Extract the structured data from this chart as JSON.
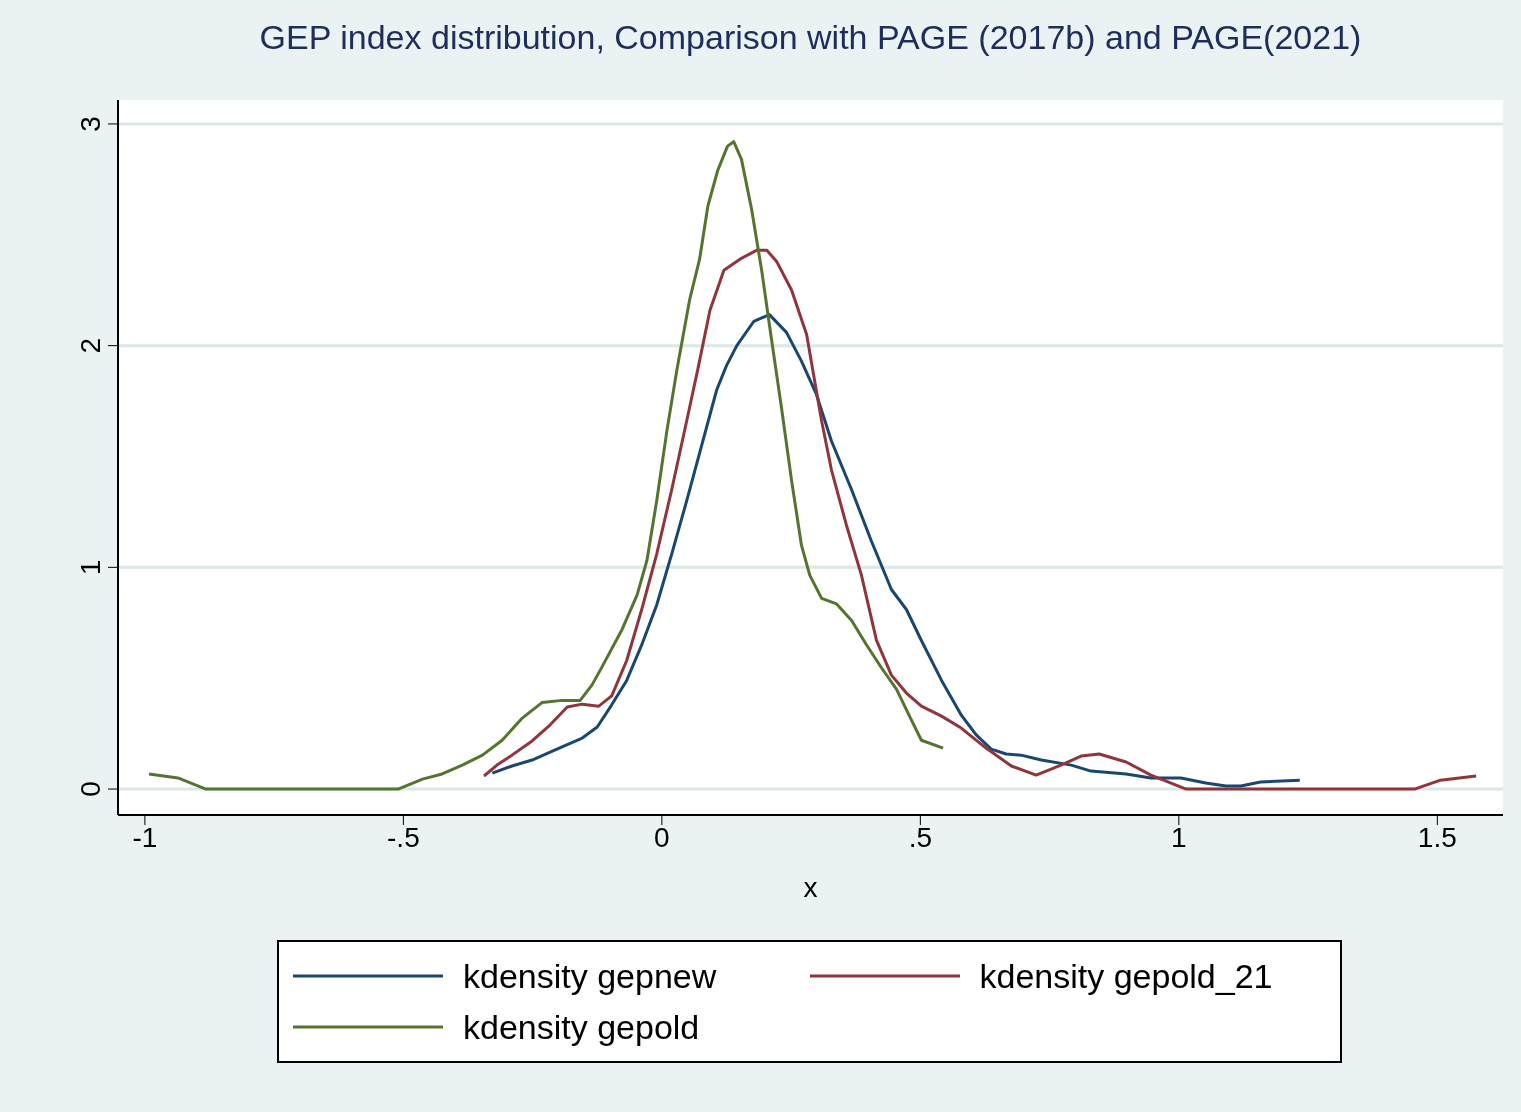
{
  "chart_data": {
    "type": "line",
    "title": "GEP index distribution, Comparison with PAGE (2017b) and PAGE(2021)",
    "xlabel": "x",
    "xlim": [
      -1.052,
      1.627
    ],
    "xticks": [
      {
        "value": -1,
        "label": "-1"
      },
      {
        "value": -0.5,
        "label": "-.5"
      },
      0,
      {
        "value": 0.5,
        "label": ".5"
      },
      1,
      1.5
    ],
    "ylim": [
      -0.117,
      3.108
    ],
    "yticks": [
      0,
      1,
      2,
      3
    ],
    "grid": "y",
    "legend": "bottom",
    "series": [
      {
        "name": "kdensity gepnew",
        "color": "#1a476f",
        "x": [
          -0.328,
          -0.29,
          -0.251,
          -0.203,
          -0.154,
          -0.125,
          -0.097,
          -0.068,
          -0.039,
          -0.01,
          0.019,
          0.048,
          0.077,
          0.106,
          0.125,
          0.145,
          0.178,
          0.208,
          0.241,
          0.27,
          0.299,
          0.328,
          0.367,
          0.405,
          0.444,
          0.473,
          0.502,
          0.541,
          0.579,
          0.608,
          0.637,
          0.666,
          0.695,
          0.734,
          0.792,
          0.83,
          0.898,
          0.946,
          1.004,
          1.052,
          1.091,
          1.12,
          1.158,
          1.234
        ],
        "values": [
          0.072,
          0.104,
          0.131,
          0.18,
          0.23,
          0.28,
          0.38,
          0.49,
          0.65,
          0.83,
          1.06,
          1.3,
          1.55,
          1.8,
          1.91,
          2.0,
          2.11,
          2.14,
          2.06,
          1.93,
          1.78,
          1.57,
          1.35,
          1.12,
          0.9,
          0.81,
          0.67,
          0.49,
          0.334,
          0.244,
          0.18,
          0.158,
          0.153,
          0.131,
          0.108,
          0.081,
          0.068,
          0.05,
          0.05,
          0.027,
          0.014,
          0.014,
          0.032,
          0.04
        ]
      },
      {
        "name": "kdensity gepold_21",
        "color": "#90353b",
        "x": [
          -0.344,
          -0.319,
          -0.29,
          -0.251,
          -0.216,
          -0.183,
          -0.154,
          -0.122,
          -0.097,
          -0.068,
          -0.039,
          -0.01,
          0.019,
          0.048,
          0.071,
          0.093,
          0.12,
          0.151,
          0.183,
          0.203,
          0.222,
          0.251,
          0.28,
          0.309,
          0.328,
          0.357,
          0.386,
          0.415,
          0.444,
          0.473,
          0.502,
          0.541,
          0.579,
          0.627,
          0.676,
          0.724,
          0.772,
          0.811,
          0.846,
          0.898,
          0.946,
          1.014,
          1.456,
          1.506,
          1.575
        ],
        "values": [
          0.059,
          0.108,
          0.153,
          0.217,
          0.29,
          0.37,
          0.383,
          0.374,
          0.42,
          0.58,
          0.81,
          1.06,
          1.35,
          1.66,
          1.91,
          2.16,
          2.34,
          2.39,
          2.43,
          2.43,
          2.38,
          2.25,
          2.05,
          1.66,
          1.44,
          1.19,
          0.965,
          0.672,
          0.514,
          0.433,
          0.374,
          0.329,
          0.275,
          0.185,
          0.104,
          0.063,
          0.108,
          0.149,
          0.158,
          0.122,
          0.063,
          0,
          0,
          0.04,
          0.059
        ]
      },
      {
        "name": "kdensity gepold",
        "color": "#55752f",
        "x": [
          -0.992,
          -0.936,
          -0.882,
          -0.51,
          -0.463,
          -0.425,
          -0.386,
          -0.347,
          -0.309,
          -0.27,
          -0.232,
          -0.193,
          -0.158,
          -0.135,
          -0.116,
          -0.077,
          -0.048,
          -0.029,
          -0.01,
          0.01,
          0.029,
          0.054,
          0.073,
          0.089,
          0.108,
          0.127,
          0.139,
          0.154,
          0.174,
          0.193,
          0.212,
          0.232,
          0.251,
          0.27,
          0.286,
          0.309,
          0.338,
          0.367,
          0.396,
          0.425,
          0.454,
          0.483,
          0.502,
          0.544
        ],
        "values": [
          0.068,
          0.05,
          0,
          0,
          0.045,
          0.068,
          0.108,
          0.153,
          0.22,
          0.32,
          0.39,
          0.4,
          0.4,
          0.47,
          0.55,
          0.72,
          0.875,
          1.03,
          1.3,
          1.62,
          1.89,
          2.21,
          2.39,
          2.63,
          2.79,
          2.9,
          2.92,
          2.84,
          2.61,
          2.34,
          2.03,
          1.71,
          1.39,
          1.1,
          0.965,
          0.86,
          0.835,
          0.76,
          0.65,
          0.546,
          0.45,
          0.31,
          0.22,
          0.185
        ]
      }
    ]
  }
}
